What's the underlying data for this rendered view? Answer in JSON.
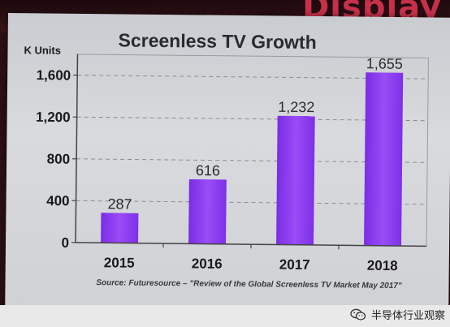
{
  "banner": {
    "text": "Display"
  },
  "chart_data": {
    "type": "bar",
    "title": "Screenless TV Growth",
    "ylabel": "K Units",
    "xlabel": "",
    "categories": [
      "2015",
      "2016",
      "2017",
      "2018"
    ],
    "values": [
      287,
      616,
      1232,
      1655
    ],
    "data_labels": [
      "287",
      "616",
      "1,232",
      "1,655"
    ],
    "ylim": [
      0,
      1800
    ],
    "yticks": [
      0,
      400,
      800,
      1200,
      1600
    ],
    "ytick_labels": [
      "0",
      "400",
      "800",
      "1,200",
      "1,600"
    ],
    "grid": true,
    "legend": "none",
    "bar_color": "#8a3cf0",
    "source": "Source: Futuresource – \"Review of the Global Screenless TV Market May 2017\""
  },
  "watermark": {
    "text": "半导体行业观察",
    "icon": "wechat-icon"
  }
}
